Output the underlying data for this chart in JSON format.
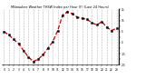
{
  "title": "Milwaukee Weather THSW Index per Hour (F) (Last 24 Hours)",
  "hours": [
    0,
    1,
    2,
    3,
    4,
    5,
    6,
    7,
    8,
    9,
    10,
    11,
    12,
    13,
    14,
    15,
    16,
    17,
    18,
    19,
    20,
    21,
    22,
    23
  ],
  "values": [
    5,
    2,
    -2,
    -6,
    -12,
    -18,
    -22,
    -20,
    -16,
    -10,
    -4,
    6,
    20,
    23,
    21,
    18,
    17,
    16,
    13,
    11,
    14,
    9,
    6,
    8
  ],
  "line_color": "#cc0000",
  "marker_color": "#000000",
  "bg_color": "#ffffff",
  "grid_color": "#888888",
  "ylim": [
    -25,
    25
  ],
  "yticks": [
    -25,
    -20,
    -15,
    -10,
    -5,
    0,
    5,
    10,
    15,
    20,
    25
  ],
  "ytick_labels": [
    "-25",
    "",
    "-15",
    "",
    "-5",
    "",
    "5",
    "",
    "15",
    "",
    "25"
  ]
}
